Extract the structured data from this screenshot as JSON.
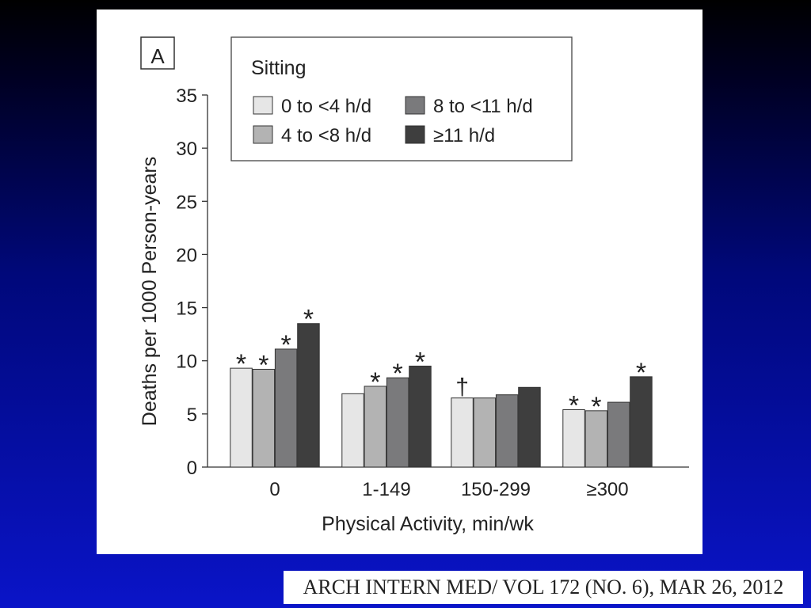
{
  "citation": "ARCH INTERN MED/ VOL 172 (NO. 6),  MAR 26, 2012",
  "chart_data": {
    "type": "bar",
    "panel_label": "A",
    "xlabel": "Physical Activity, min/wk",
    "ylabel": "Deaths per 1000 Person-years",
    "ylim": [
      0,
      35
    ],
    "yticks": [
      0,
      5,
      10,
      15,
      20,
      25,
      30,
      35
    ],
    "categories": [
      "0",
      "1-149",
      "150-299",
      "≥300"
    ],
    "legend_title": "Sitting",
    "legend_position": "top",
    "grid": false,
    "series": [
      {
        "name": "0 to <4 h/d",
        "color": "#e6e6e6",
        "values": [
          9.3,
          6.9,
          6.5,
          5.4
        ],
        "markers": [
          "*",
          "",
          "†",
          "*"
        ]
      },
      {
        "name": "4 to <8 h/d",
        "color": "#b3b3b3",
        "values": [
          9.2,
          7.6,
          6.5,
          5.3
        ],
        "markers": [
          "*",
          "*",
          "",
          "*"
        ]
      },
      {
        "name": "8 to <11 h/d",
        "color": "#7a7a7c",
        "values": [
          11.1,
          8.4,
          6.8,
          6.1
        ],
        "markers": [
          "*",
          "*",
          "",
          ""
        ]
      },
      {
        "name": "≥11 h/d",
        "color": "#3e3e3e",
        "values": [
          13.5,
          9.5,
          7.5,
          8.5
        ],
        "markers": [
          "*",
          "*",
          "",
          "*"
        ]
      }
    ]
  }
}
